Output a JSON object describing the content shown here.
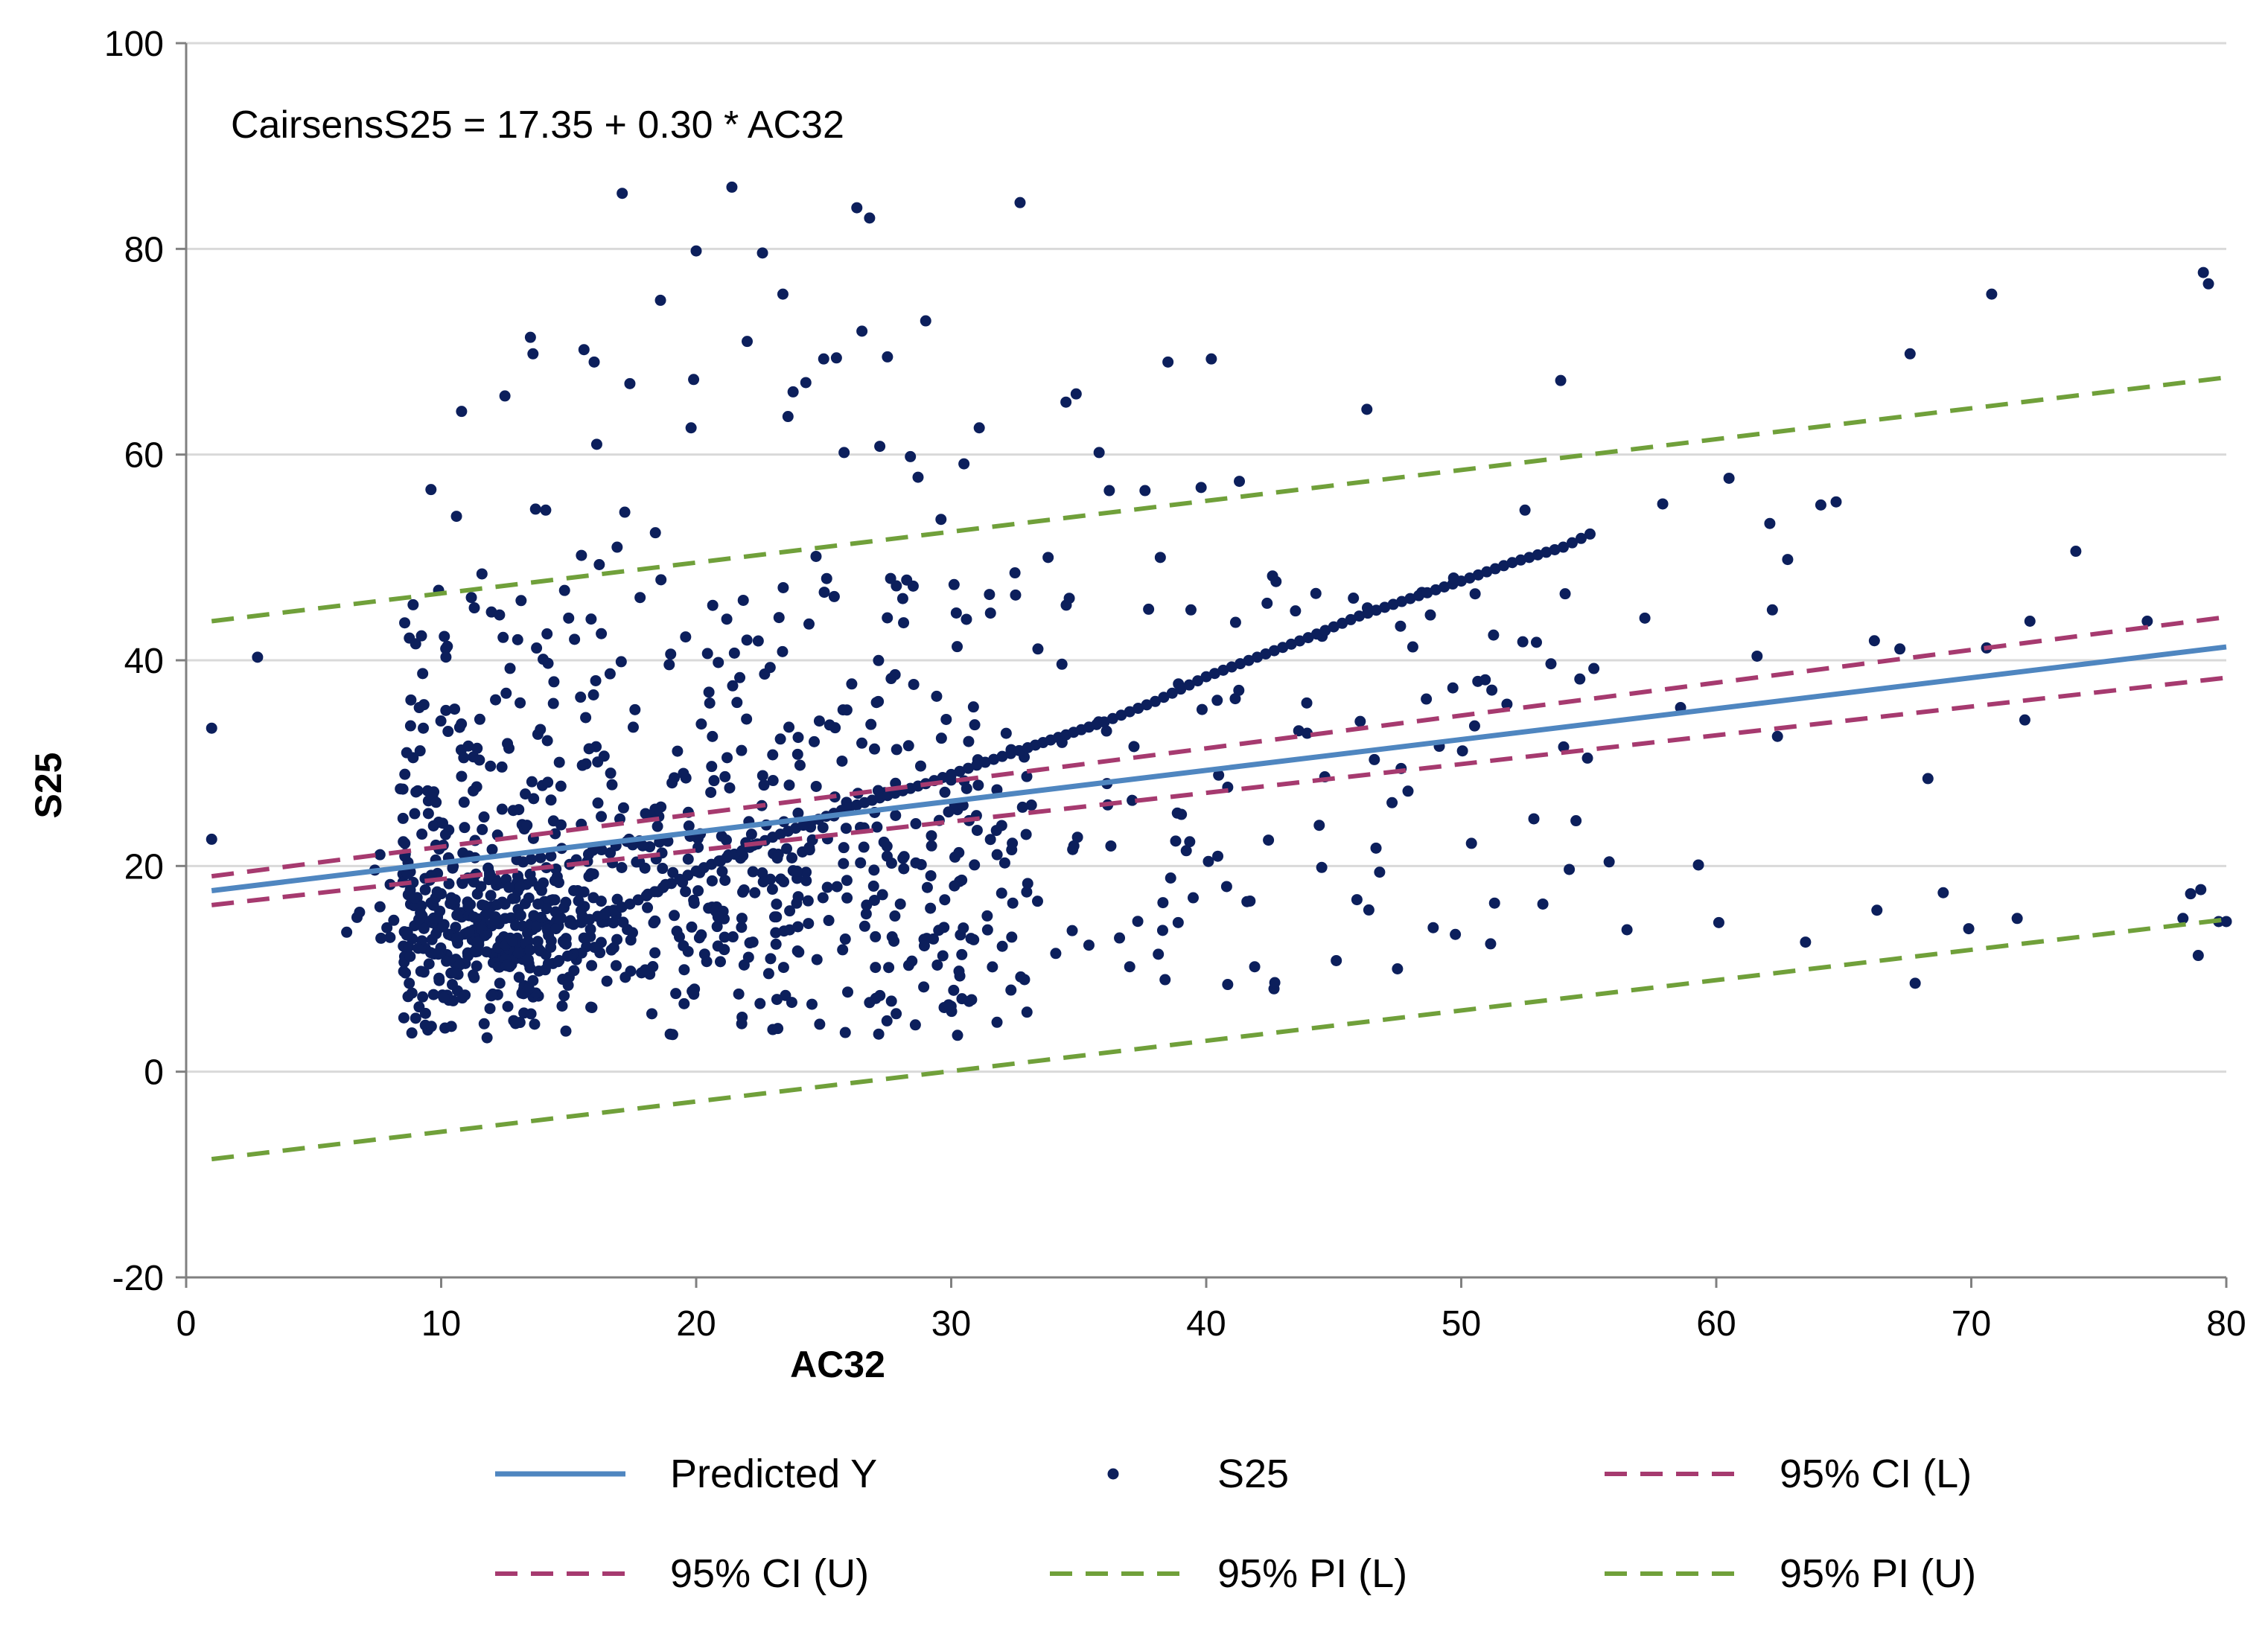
{
  "chart_data": {
    "type": "scatter",
    "title": "",
    "annotation": "CairsensS25 =  17.35 + 0.30 * AC32",
    "xlabel": "AC32",
    "ylabel": "S25",
    "xlim": [
      0,
      80
    ],
    "ylim": [
      -20,
      100
    ],
    "x_ticks": [
      "0",
      "10",
      "20",
      "30",
      "40",
      "50",
      "60",
      "70",
      "80"
    ],
    "y_ticks": [
      "100",
      "80",
      "60",
      "40",
      "20",
      "0",
      "-20"
    ],
    "grid": "horizontal",
    "legend_position": "bottom",
    "colors": {
      "predicted": "#4f86c0",
      "points": "#0c1f5c",
      "ci": "#a63a6f",
      "pi": "#70a03a"
    },
    "series": [
      {
        "name": "Predicted Y",
        "kind": "line",
        "style": "solid",
        "x": [
          1,
          80
        ],
        "y": [
          17.6,
          41.3
        ]
      },
      {
        "name": "S25",
        "kind": "scatter",
        "note": "approx. 1100 points; representative subset captured",
        "x": [],
        "y": []
      },
      {
        "name": "95% CI (L)",
        "kind": "line",
        "style": "dashed",
        "x": [
          1,
          80
        ],
        "y": [
          16.2,
          38.3
        ]
      },
      {
        "name": "95% CI (U)",
        "kind": "line",
        "style": "dashed",
        "x": [
          1,
          80
        ],
        "y": [
          19.0,
          44.2
        ]
      },
      {
        "name": "95% PI (L)",
        "kind": "line",
        "style": "dashed",
        "x": [
          1,
          80
        ],
        "y": [
          -8.5,
          14.8
        ]
      },
      {
        "name": "95% PI (U)",
        "kind": "line",
        "style": "dashed",
        "x": [
          1,
          80
        ],
        "y": [
          43.8,
          67.5
        ]
      }
    ],
    "scatter_points": [
      [
        1,
        33.4
      ],
      [
        1,
        22.6
      ],
      [
        2.8,
        40.3
      ],
      [
        6.7,
        15.0
      ],
      [
        6.8,
        15.5
      ],
      [
        7.4,
        19.6
      ],
      [
        7.6,
        21.1
      ],
      [
        8,
        18.2
      ],
      [
        8.4,
        27.5
      ],
      [
        8.6,
        9.6
      ],
      [
        8.7,
        7.3
      ],
      [
        8.9,
        45.4
      ],
      [
        9,
        41.6
      ],
      [
        9.1,
        12.0
      ],
      [
        9.3,
        33.4
      ],
      [
        9.5,
        25.1
      ],
      [
        9.6,
        56.6
      ],
      [
        9.7,
        23.9
      ],
      [
        9.9,
        46.8
      ],
      [
        10,
        17.3
      ],
      [
        10.1,
        7.2
      ],
      [
        10.3,
        20.7
      ],
      [
        10.4,
        4.4
      ],
      [
        10.6,
        54.0
      ],
      [
        10.8,
        64.2
      ],
      [
        10.9,
        26.2
      ],
      [
        11.1,
        13.6
      ],
      [
        11.3,
        45.1
      ],
      [
        11.5,
        30.3
      ],
      [
        11.6,
        48.4
      ],
      [
        11.8,
        3.3
      ],
      [
        12,
        21.6
      ],
      [
        12.1,
        14.7
      ],
      [
        12.3,
        8.6
      ],
      [
        12.5,
        65.7
      ],
      [
        12.6,
        31.9
      ],
      [
        12.8,
        12.7
      ],
      [
        13,
        42.0
      ],
      [
        13.1,
        18.0
      ],
      [
        13.3,
        27.0
      ],
      [
        13.5,
        71.4
      ],
      [
        13.6,
        69.8
      ],
      [
        13.7,
        54.7
      ],
      [
        13.8,
        16.3
      ],
      [
        14,
        40.1
      ],
      [
        14.1,
        54.6
      ],
      [
        14.2,
        10.5
      ],
      [
        14.4,
        35.8
      ],
      [
        14.5,
        13.9
      ],
      [
        14.7,
        24.0
      ],
      [
        14.9,
        12.4
      ],
      [
        15,
        44.1
      ],
      [
        15.2,
        17.6
      ],
      [
        15.3,
        20.6
      ],
      [
        15.5,
        50.2
      ],
      [
        15.6,
        70.2
      ],
      [
        15.8,
        31.4
      ],
      [
        16,
        69.0
      ],
      [
        16.1,
        61.0
      ],
      [
        16.2,
        49.3
      ],
      [
        16.4,
        15.3
      ],
      [
        16.5,
        8.8
      ],
      [
        16.7,
        27.9
      ],
      [
        16.9,
        51.0
      ],
      [
        17.1,
        85.4
      ],
      [
        17.2,
        54.4
      ],
      [
        17.4,
        66.9
      ],
      [
        17.6,
        35.2
      ],
      [
        17.8,
        46.1
      ],
      [
        18,
        9.9
      ],
      [
        18.2,
        24.9
      ],
      [
        18.4,
        52.4
      ],
      [
        18.6,
        75.0
      ],
      [
        18.8,
        18.2
      ],
      [
        19,
        40.6
      ],
      [
        19.2,
        7.6
      ],
      [
        19.5,
        29.0
      ],
      [
        19.8,
        62.6
      ],
      [
        19.9,
        67.3
      ],
      [
        20,
        79.8
      ],
      [
        20.2,
        13.3
      ],
      [
        20.5,
        36.9
      ],
      [
        20.7,
        28.3
      ],
      [
        21,
        22.9
      ],
      [
        21.2,
        44.0
      ],
      [
        21.4,
        86.0
      ],
      [
        21.6,
        35.9
      ],
      [
        21.8,
        5.3
      ],
      [
        22,
        71.0
      ],
      [
        22.3,
        17.4
      ],
      [
        22.6,
        79.6
      ],
      [
        22.9,
        39.3
      ],
      [
        23.2,
        4.2
      ],
      [
        23.4,
        75.6
      ],
      [
        23.6,
        63.7
      ],
      [
        23.8,
        66.1
      ],
      [
        24,
        32.5
      ],
      [
        24.3,
        67.0
      ],
      [
        24.7,
        50.1
      ],
      [
        25,
        69.3
      ],
      [
        25.2,
        14.7
      ],
      [
        25.5,
        69.4
      ],
      [
        25.8,
        60.2
      ],
      [
        26.1,
        37.7
      ],
      [
        26.3,
        84.0
      ],
      [
        26.5,
        72.0
      ],
      [
        26.8,
        83.0
      ],
      [
        27,
        25.2
      ],
      [
        27.2,
        60.8
      ],
      [
        27.5,
        69.5
      ],
      [
        27.8,
        38.6
      ],
      [
        28.1,
        46.0
      ],
      [
        28.4,
        59.8
      ],
      [
        28.7,
        57.8
      ],
      [
        29,
        73.0
      ],
      [
        29.3,
        12.9
      ],
      [
        29.6,
        53.7
      ],
      [
        29.9,
        6.5
      ],
      [
        30.2,
        44.6
      ],
      [
        30.5,
        59.1
      ],
      [
        30.8,
        7.0
      ],
      [
        31.1,
        62.6
      ],
      [
        31.5,
        46.4
      ],
      [
        31.8,
        21.1
      ],
      [
        32.1,
        20.3
      ],
      [
        32.5,
        48.5
      ],
      [
        32.7,
        84.5
      ],
      [
        33,
        18.3
      ],
      [
        33.4,
        41.1
      ],
      [
        33.8,
        50.0
      ],
      [
        34.1,
        11.5
      ],
      [
        34.5,
        65.1
      ],
      [
        34.9,
        65.9
      ],
      [
        35.4,
        12.3
      ],
      [
        35.8,
        60.2
      ],
      [
        36.2,
        56.5
      ],
      [
        36.6,
        13.0
      ],
      [
        37,
        10.2
      ],
      [
        37.6,
        56.5
      ],
      [
        38.2,
        50.0
      ],
      [
        38.5,
        69.0
      ],
      [
        38.9,
        14.5
      ],
      [
        39.4,
        44.9
      ],
      [
        39.8,
        56.8
      ],
      [
        40.2,
        69.3
      ],
      [
        40.8,
        18.0
      ],
      [
        41.3,
        57.4
      ],
      [
        41.9,
        10.2
      ],
      [
        42.6,
        48.2
      ],
      [
        43.5,
        44.8
      ],
      [
        44.3,
        46.5
      ],
      [
        45.1,
        10.8
      ],
      [
        46.3,
        64.4
      ],
      [
        46.8,
        19.4
      ],
      [
        47.5,
        10.0
      ],
      [
        48.1,
        41.3
      ],
      [
        48.9,
        14.0
      ],
      [
        49.7,
        48.0
      ],
      [
        50.4,
        22.2
      ],
      [
        51.2,
        37.1
      ],
      [
        52.5,
        54.6
      ],
      [
        53.2,
        16.3
      ],
      [
        53.9,
        67.2
      ],
      [
        54.5,
        24.4
      ],
      [
        55.2,
        39.2
      ],
      [
        55.8,
        20.4
      ],
      [
        56.5,
        13.8
      ],
      [
        57.2,
        44.1
      ],
      [
        57.9,
        55.2
      ],
      [
        58.6,
        35.4
      ],
      [
        59.3,
        20.1
      ],
      [
        60.1,
        14.5
      ],
      [
        60.5,
        57.7
      ],
      [
        61.6,
        40.4
      ],
      [
        62.1,
        53.3
      ],
      [
        62.2,
        44.9
      ],
      [
        62.4,
        32.6
      ],
      [
        62.8,
        49.8
      ],
      [
        63.5,
        12.6
      ],
      [
        64.1,
        55.1
      ],
      [
        64.7,
        55.4
      ],
      [
        66.2,
        41.9
      ],
      [
        66.3,
        15.7
      ],
      [
        67.2,
        41.1
      ],
      [
        67.6,
        69.8
      ],
      [
        67.8,
        8.6
      ],
      [
        68.3,
        28.5
      ],
      [
        68.9,
        17.4
      ],
      [
        69.9,
        13.9
      ],
      [
        70.6,
        41.2
      ],
      [
        70.8,
        75.6
      ],
      [
        71.8,
        14.9
      ],
      [
        72.1,
        34.2
      ],
      [
        72.3,
        43.8
      ],
      [
        74.1,
        50.6
      ],
      [
        76.9,
        43.8
      ],
      [
        78.3,
        14.9
      ],
      [
        78.6,
        17.3
      ],
      [
        79.1,
        77.7
      ],
      [
        79.3,
        76.6
      ],
      [
        79.7,
        14.6
      ],
      [
        78.9,
        11.3
      ],
      [
        79.0,
        17.7
      ],
      [
        80,
        14.6
      ]
    ],
    "dense_band": [
      [
        15.5,
        14.5
      ],
      [
        17.4,
        16.3
      ],
      [
        20,
        19.5
      ],
      [
        23,
        22.8
      ],
      [
        26,
        25.7
      ],
      [
        29,
        28.0
      ],
      [
        31,
        29.8
      ],
      [
        33,
        31.5
      ],
      [
        36,
        34.0
      ],
      [
        38,
        36.0
      ],
      [
        40,
        38.4
      ],
      [
        42,
        40.3
      ],
      [
        44,
        42.2
      ],
      [
        46,
        44.3
      ],
      [
        48,
        46.0
      ],
      [
        50,
        47.7
      ],
      [
        52,
        49.5
      ],
      [
        54,
        51.0
      ],
      [
        55.4,
        52.7
      ]
    ],
    "legend": [
      "Predicted Y",
      "S25",
      "95% CI (L)",
      "95% CI (U)",
      "95% PI (L)",
      "95% PI (U)"
    ]
  }
}
